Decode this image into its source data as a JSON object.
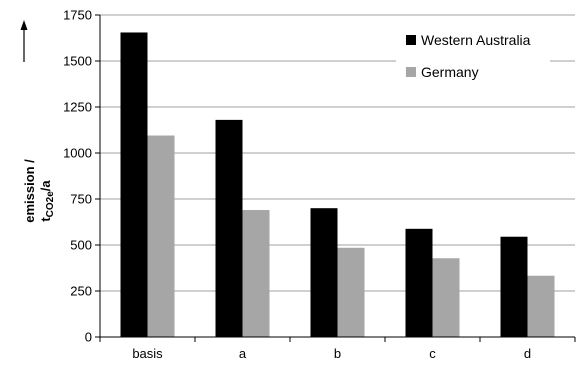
{
  "chart_data": {
    "type": "bar",
    "title": "",
    "xlabel": "",
    "ylabel_line1": "emission /",
    "ylabel_line2_main": "t",
    "ylabel_line2_sub": "CO2e",
    "ylabel_line2_tail": "/a",
    "ylim": [
      0,
      1750
    ],
    "yticks": [
      "0",
      "250",
      "500",
      "750",
      "1000",
      "1250",
      "1500",
      "1750"
    ],
    "categories": [
      "basis",
      "a",
      "b",
      "c",
      "d"
    ],
    "series": [
      {
        "name": "Western Australia",
        "color": "#000000",
        "values": [
          1655,
          1180,
          700,
          588,
          545
        ]
      },
      {
        "name": "Germany",
        "color": "#a6a6a6",
        "values": [
          1095,
          690,
          485,
          428,
          333
        ]
      }
    ],
    "grid": true,
    "legend_position": "top-right"
  }
}
